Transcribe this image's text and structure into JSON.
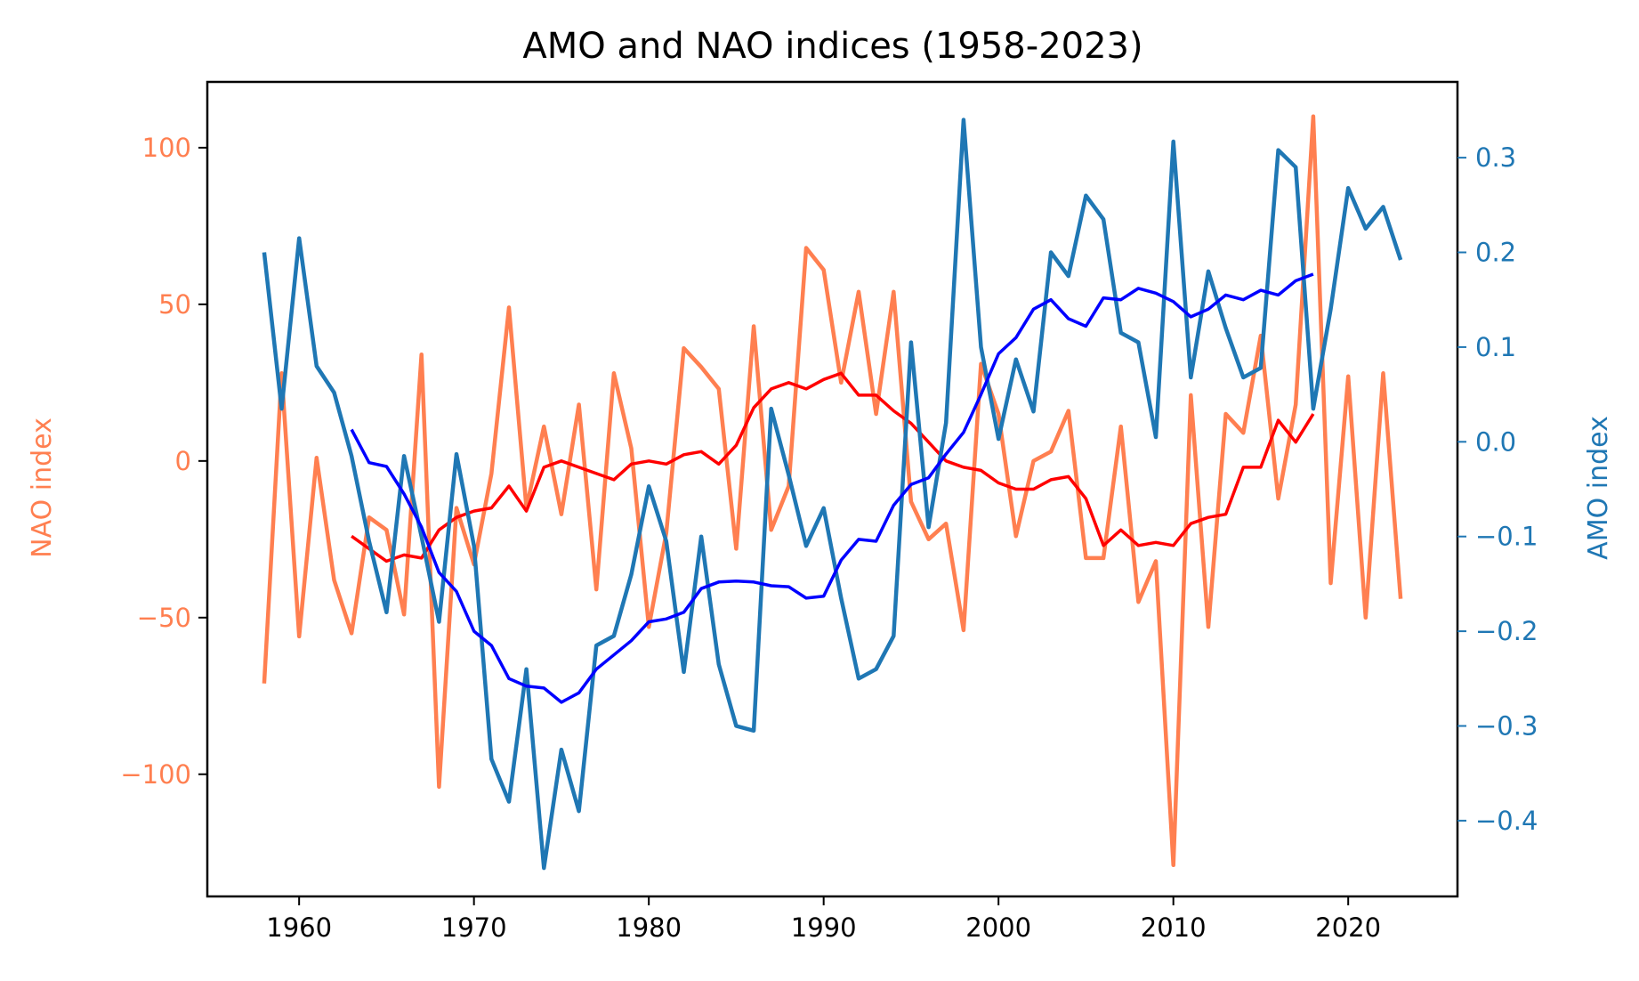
{
  "chart_data": {
    "type": "line",
    "title": "AMO and NAO indices (1958-2023)",
    "xlabel": "",
    "ylabel_left": "NAO index",
    "ylabel_right": "AMO index",
    "xlim": [
      1954.75,
      2026.25
    ],
    "ylim_left": [
      -139,
      121
    ],
    "ylim_right": [
      -0.48,
      0.38
    ],
    "x_ticks": [
      1960,
      1970,
      1980,
      1990,
      2000,
      2010,
      2020
    ],
    "y_ticks_left": [
      -100,
      -50,
      0,
      50,
      100
    ],
    "y_ticks_right": [
      -0.4,
      -0.3,
      -0.2,
      -0.1,
      0.0,
      0.1,
      0.2,
      0.3
    ],
    "grid": false,
    "colors": {
      "nao": "#ff7f50",
      "nao_smooth": "#ff0000",
      "amo": "#1f77b4",
      "amo_smooth": "#0000ff",
      "axis": "#000000"
    },
    "series": [
      {
        "key": "nao",
        "axis": "left",
        "x": [
          1958,
          1959,
          1960,
          1961,
          1962,
          1963,
          1964,
          1965,
          1966,
          1967,
          1968,
          1969,
          1970,
          1971,
          1972,
          1973,
          1974,
          1975,
          1976,
          1977,
          1978,
          1979,
          1980,
          1981,
          1982,
          1983,
          1984,
          1985,
          1986,
          1987,
          1988,
          1989,
          1990,
          1991,
          1992,
          1993,
          1994,
          1995,
          1996,
          1997,
          1998,
          1999,
          2000,
          2001,
          2002,
          2003,
          2004,
          2005,
          2006,
          2007,
          2008,
          2009,
          2010,
          2011,
          2012,
          2013,
          2014,
          2015,
          2016,
          2017,
          2018,
          2019,
          2020,
          2021,
          2022,
          2023
        ],
        "y": [
          -71,
          28,
          -56,
          1,
          -38,
          -55,
          -18,
          -22,
          -49,
          34,
          -104,
          -15,
          -33,
          -4,
          49,
          -15,
          11,
          -17,
          18,
          -41,
          28,
          4,
          -53,
          -23,
          36,
          30,
          23,
          -28,
          43,
          -22,
          -8,
          68,
          61,
          25,
          54,
          15,
          54,
          -13,
          -25,
          -20,
          -54,
          31,
          15,
          -24,
          0,
          3,
          16,
          -31,
          -31,
          11,
          -45,
          -32,
          -129,
          21,
          -53,
          15,
          9,
          40,
          -12,
          18,
          110,
          -39,
          27,
          -50,
          28,
          -44
        ]
      },
      {
        "key": "nao_smooth",
        "axis": "left",
        "x": [
          1963,
          1964,
          1965,
          1966,
          1967,
          1968,
          1969,
          1970,
          1971,
          1972,
          1973,
          1974,
          1975,
          1976,
          1977,
          1978,
          1979,
          1980,
          1981,
          1982,
          1983,
          1984,
          1985,
          1986,
          1987,
          1988,
          1989,
          1990,
          1991,
          1992,
          1993,
          1994,
          1995,
          1996,
          1997,
          1998,
          1999,
          2000,
          2001,
          2002,
          2003,
          2004,
          2005,
          2006,
          2007,
          2008,
          2009,
          2010,
          2011,
          2012,
          2013,
          2014,
          2015,
          2016,
          2017,
          2018
        ],
        "y": [
          -24,
          -28,
          -32,
          -30,
          -31,
          -22,
          -18,
          -16,
          -15,
          -8,
          -16,
          -2,
          0,
          -2,
          -4,
          -6,
          -1,
          0,
          -1,
          2,
          3,
          -1,
          5,
          17,
          23,
          25,
          23,
          26,
          28,
          21,
          21,
          16,
          12,
          6,
          0,
          -2,
          -3,
          -7,
          -9,
          -9,
          -6,
          -5,
          -12,
          -27,
          -22,
          -27,
          -26,
          -27,
          -20,
          -18,
          -17,
          -2,
          -2,
          13,
          6,
          15
        ]
      },
      {
        "key": "amo",
        "axis": "right",
        "x": [
          1958,
          1959,
          1960,
          1961,
          1962,
          1963,
          1964,
          1965,
          1966,
          1967,
          1968,
          1969,
          1970,
          1971,
          1972,
          1973,
          1974,
          1975,
          1976,
          1977,
          1978,
          1979,
          1980,
          1981,
          1982,
          1983,
          1984,
          1985,
          1986,
          1987,
          1988,
          1989,
          1990,
          1991,
          1992,
          1993,
          1994,
          1995,
          1996,
          1997,
          1998,
          1999,
          2000,
          2001,
          2002,
          2003,
          2004,
          2005,
          2006,
          2007,
          2008,
          2009,
          2010,
          2011,
          2012,
          2013,
          2014,
          2015,
          2016,
          2017,
          2018,
          2019,
          2020,
          2021,
          2022,
          2023
        ],
        "y": [
          0.2,
          0.035,
          0.215,
          0.08,
          0.052,
          -0.015,
          -0.105,
          -0.18,
          -0.015,
          -0.1,
          -0.19,
          -0.013,
          -0.11,
          -0.335,
          -0.38,
          -0.24,
          -0.45,
          -0.325,
          -0.39,
          -0.215,
          -0.205,
          -0.14,
          -0.047,
          -0.105,
          -0.243,
          -0.1,
          -0.235,
          -0.3,
          -0.305,
          0.035,
          -0.035,
          -0.11,
          -0.07,
          -0.165,
          -0.25,
          -0.24,
          -0.205,
          0.105,
          -0.09,
          0.02,
          0.34,
          0.1,
          0.003,
          0.087,
          0.032,
          0.2,
          0.175,
          0.26,
          0.235,
          0.115,
          0.105,
          0.005,
          0.317,
          0.068,
          0.18,
          0.12,
          0.068,
          0.078,
          0.308,
          0.29,
          0.035,
          0.14,
          0.268,
          0.225,
          0.248,
          0.192
        ]
      },
      {
        "key": "amo_smooth",
        "axis": "right",
        "x": [
          1963,
          1964,
          1965,
          1966,
          1967,
          1968,
          1969,
          1970,
          1971,
          1972,
          1973,
          1974,
          1975,
          1976,
          1977,
          1978,
          1979,
          1980,
          1981,
          1982,
          1983,
          1984,
          1985,
          1986,
          1987,
          1988,
          1989,
          1990,
          1991,
          1992,
          1993,
          1994,
          1995,
          1996,
          1997,
          1998,
          1999,
          2000,
          2001,
          2002,
          2003,
          2004,
          2005,
          2006,
          2007,
          2008,
          2009,
          2010,
          2011,
          2012,
          2013,
          2014,
          2015,
          2016,
          2017,
          2018
        ],
        "y": [
          0.013,
          -0.022,
          -0.026,
          -0.055,
          -0.09,
          -0.138,
          -0.158,
          -0.2,
          -0.215,
          -0.25,
          -0.258,
          -0.26,
          -0.275,
          -0.265,
          -0.24,
          -0.225,
          -0.21,
          -0.19,
          -0.187,
          -0.18,
          -0.155,
          -0.148,
          -0.147,
          -0.148,
          -0.152,
          -0.153,
          -0.165,
          -0.163,
          -0.125,
          -0.103,
          -0.105,
          -0.067,
          -0.045,
          -0.038,
          -0.013,
          0.01,
          0.05,
          0.093,
          0.11,
          0.14,
          0.15,
          0.13,
          0.122,
          0.152,
          0.15,
          0.162,
          0.157,
          0.148,
          0.132,
          0.14,
          0.155,
          0.15,
          0.16,
          0.155,
          0.17,
          0.177
        ]
      }
    ]
  }
}
